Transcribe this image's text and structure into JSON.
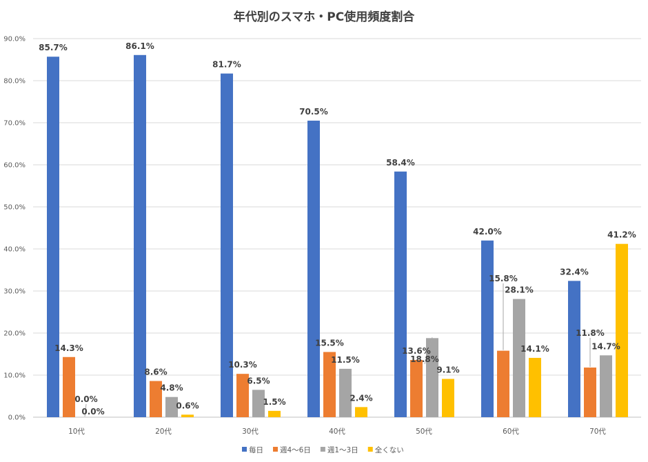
{
  "chart_data": {
    "type": "bar",
    "title": "年代別のスマホ・PC使用頻度割合",
    "categories": [
      "10代",
      "20代",
      "30代",
      "40代",
      "50代",
      "60代",
      "70代"
    ],
    "series": [
      {
        "name": "毎日",
        "color": "#4472C4",
        "values": [
          85.7,
          86.1,
          81.7,
          70.5,
          58.4,
          42.0,
          32.4
        ]
      },
      {
        "name": "週4〜6日",
        "color": "#ED7D31",
        "values": [
          14.3,
          8.6,
          10.3,
          15.5,
          13.6,
          15.8,
          11.8
        ]
      },
      {
        "name": "週1〜3日",
        "color": "#A5A5A5",
        "values": [
          0.0,
          4.8,
          6.5,
          11.5,
          18.8,
          28.1,
          14.7
        ]
      },
      {
        "name": "全くない",
        "color": "#FFC000",
        "values": [
          0.0,
          0.6,
          1.5,
          2.4,
          9.1,
          14.1,
          41.2
        ]
      }
    ],
    "y_ticks": [
      "0.0%",
      "10.0%",
      "20.0%",
      "30.0%",
      "40.0%",
      "50.0%",
      "60.0%",
      "70.0%",
      "80.0%",
      "90.0%"
    ],
    "data_label_format": "percent_1dp",
    "ylim": [
      0,
      90
    ],
    "grid": true,
    "legend_position": "bottom"
  }
}
